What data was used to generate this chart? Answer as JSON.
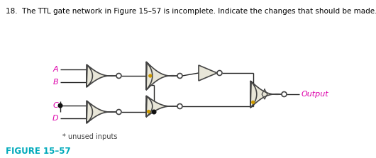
{
  "title_text": "18.  The TTL gate network in Figure 15–57 is incomplete. Indicate the changes that should be made.",
  "figure_label": "FIGURE 15–57",
  "unused_label": "* unused inputs",
  "output_label": "Output",
  "gate_fill": "#e8e6d8",
  "gate_edge": "#444444",
  "wire_color": "#222222",
  "dot_color": "#111111",
  "title_color": "#000000",
  "figure_label_color": "#00aabb",
  "input_label_color": "#dd00aa",
  "output_label_color": "#dd00aa",
  "unused_label_color": "#444444",
  "bg_color": "#ffffff",
  "gate_lw": 1.2,
  "wire_lw": 1.0,
  "bubble_r": 3.5,
  "dot_r": 2.8
}
